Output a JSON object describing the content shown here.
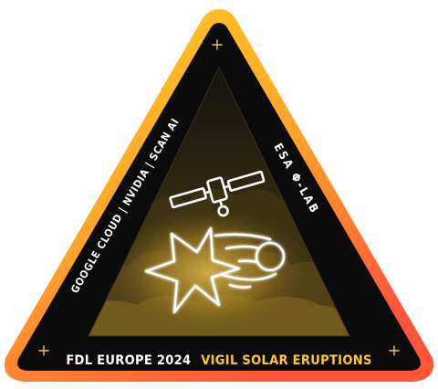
{
  "patch": {
    "left_text": "GOOGLE CLOUD | NVIDIA | SCAN AI",
    "right_text": "ESA Φ-LAB",
    "bottom_white": "FDL EUROPE 2024",
    "bottom_gold": "VIGIL SOLAR ERUPTIONS",
    "icons": [
      "satellite-icon",
      "solar-flare-icon",
      "comet-icon",
      "sparkle-icon",
      "cloud-icon"
    ]
  },
  "colors": {
    "border_top": "#ffc426",
    "border_bottom": "#ff5a3a",
    "background": "#0b0b0b",
    "inner_triangle": "#2a2410",
    "cloud_gold": "#6b5518",
    "glow": "#c9a23a",
    "text_white": "#ffffff",
    "text_gold": "#ffc828"
  }
}
